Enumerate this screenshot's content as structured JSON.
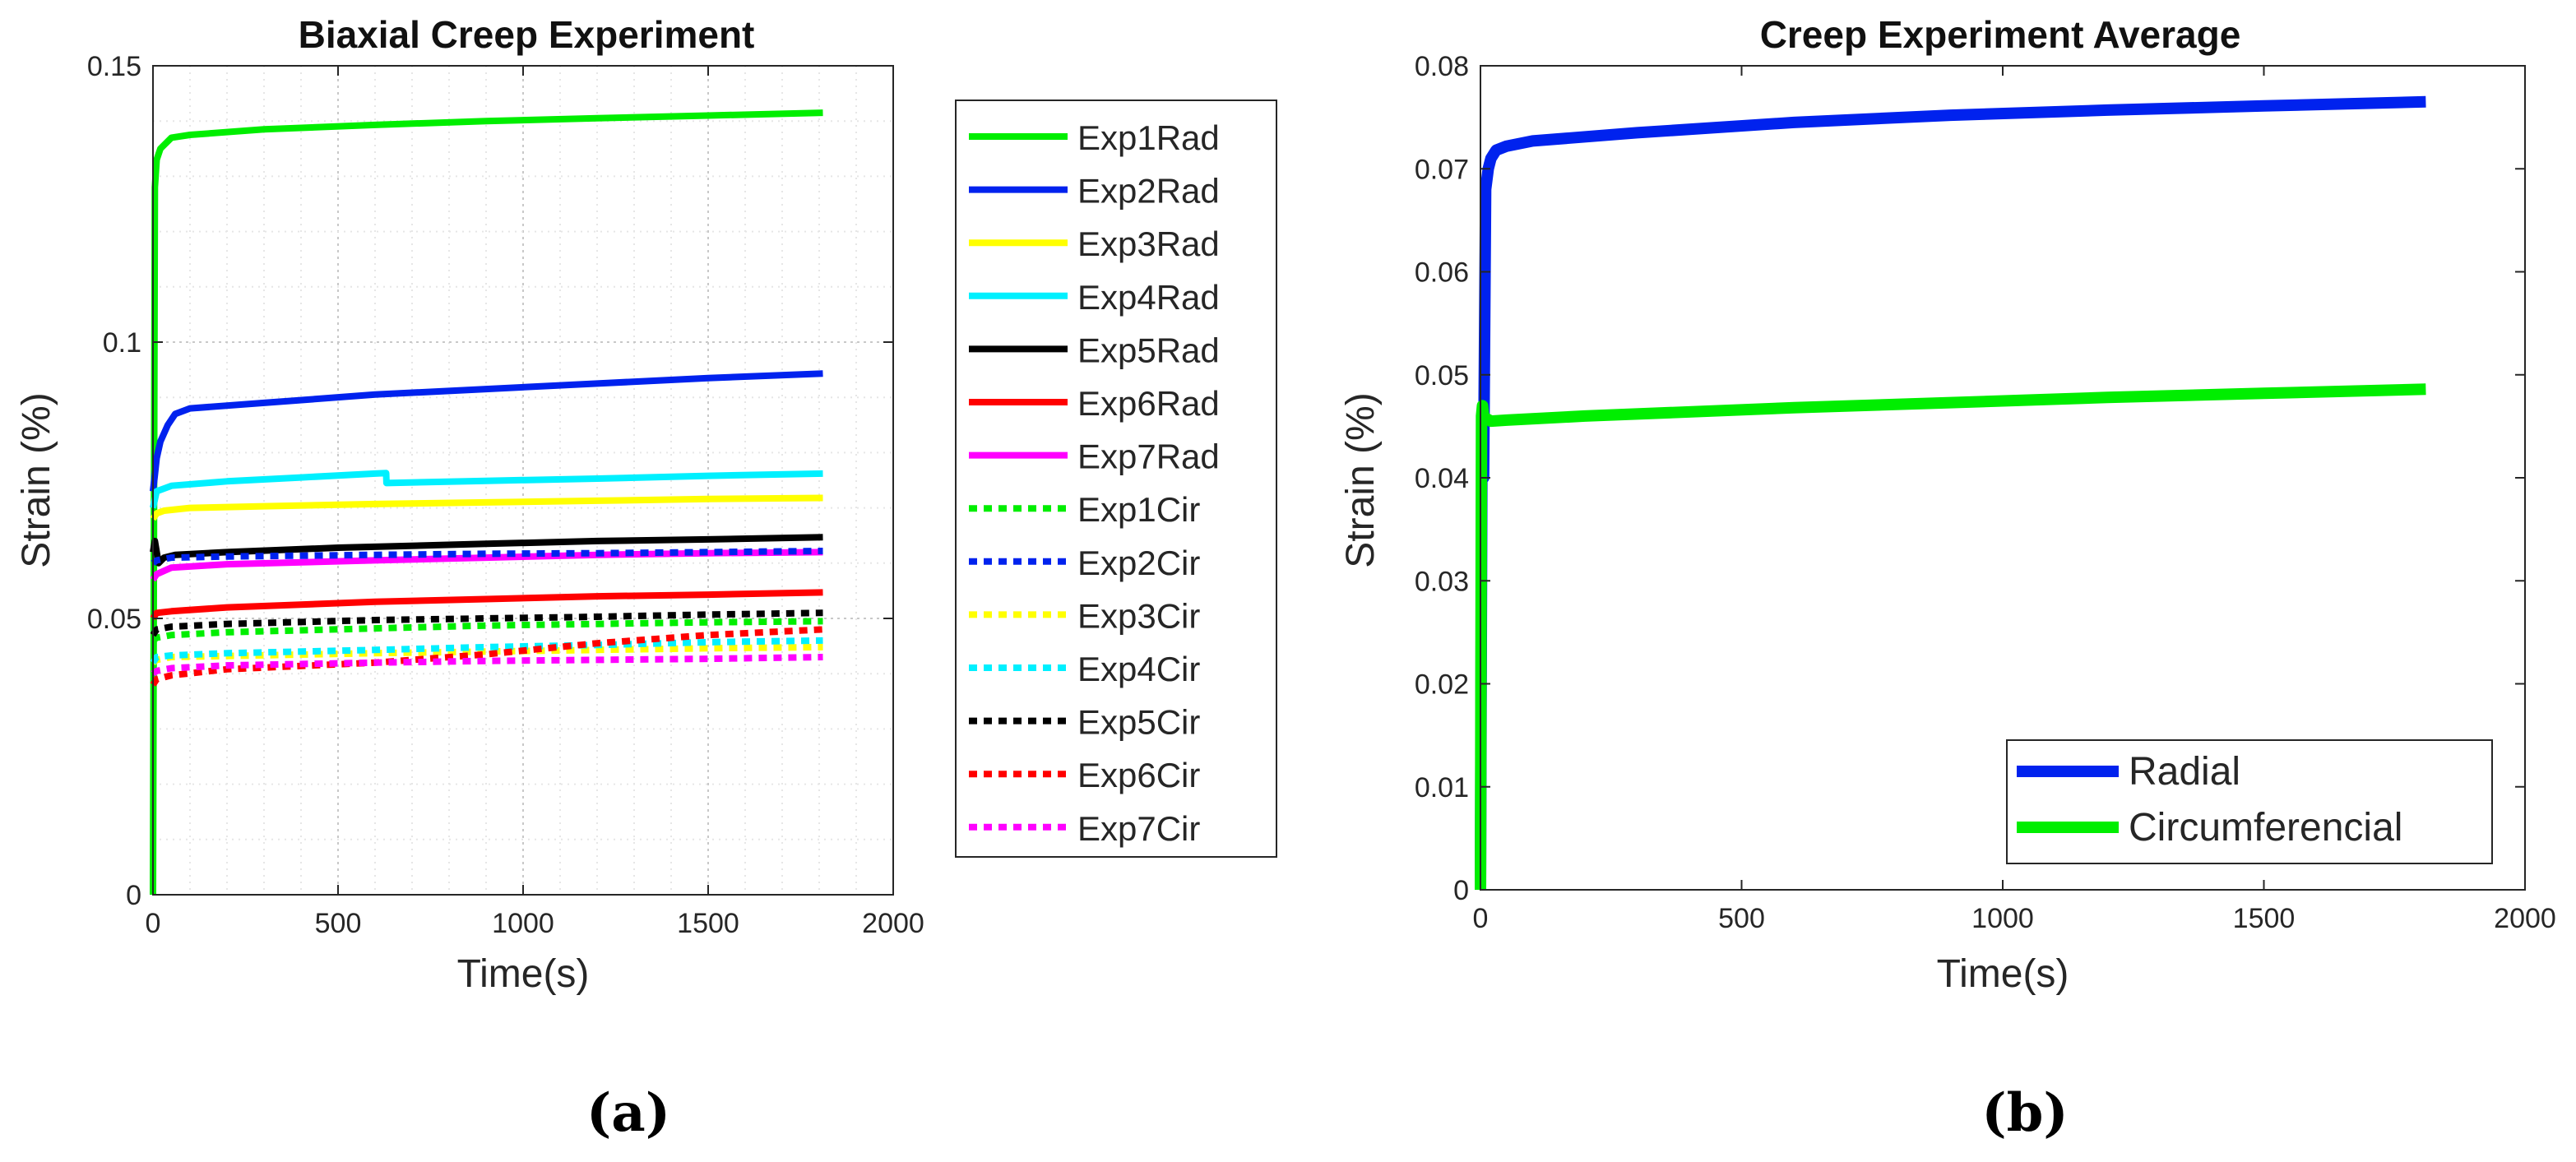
{
  "chart_data": [
    {
      "type": "line",
      "title": "Biaxial Creep Experiment",
      "xlabel": "Time(s)",
      "ylabel": "Strain (%)",
      "xlim": [
        0,
        2000
      ],
      "ylim": [
        0,
        0.15
      ],
      "xticks": [
        "0",
        "500",
        "1000",
        "1500",
        "2000"
      ],
      "xtick_values": [
        0,
        500,
        1000,
        1500,
        2000
      ],
      "yticks": [
        "0",
        "0.05",
        "0.1",
        "0.15"
      ],
      "ytick_values": [
        0,
        0.05,
        0.1,
        0.15
      ],
      "grid": "major and minor, dotted",
      "legend_position": "outside-right",
      "panel_label": "(a)",
      "series": [
        {
          "name": "Exp1Rad",
          "color": "#00ee00",
          "dash": "solid",
          "x": [
            0,
            5,
            10,
            20,
            50,
            100,
            300,
            600,
            900,
            1200,
            1500,
            1810
          ],
          "y": [
            0,
            0.128,
            0.133,
            0.135,
            0.137,
            0.1375,
            0.1385,
            0.1393,
            0.14,
            0.1405,
            0.141,
            0.1415
          ]
        },
        {
          "name": "Exp2Rad",
          "color": "#0022ee",
          "dash": "solid",
          "x": [
            0,
            5,
            10,
            20,
            40,
            60,
            100,
            300,
            600,
            900,
            1200,
            1500,
            1810
          ],
          "y": [
            0.073,
            0.076,
            0.079,
            0.082,
            0.085,
            0.087,
            0.088,
            0.089,
            0.0905,
            0.0915,
            0.0925,
            0.0935,
            0.0943
          ]
        },
        {
          "name": "Exp3Rad",
          "color": "#ffff00",
          "dash": "solid",
          "x": [
            0,
            10,
            30,
            100,
            300,
            600,
            900,
            1200,
            1500,
            1810
          ],
          "y": [
            0.068,
            0.069,
            0.0695,
            0.07,
            0.0703,
            0.0707,
            0.071,
            0.0713,
            0.0716,
            0.0718
          ]
        },
        {
          "name": "Exp4Rad",
          "color": "#00f0ff",
          "dash": "solid",
          "x": [
            0,
            10,
            50,
            200,
            400,
            600,
            630,
            631,
            900,
            1200,
            1500,
            1810
          ],
          "y": [
            0.07,
            0.073,
            0.074,
            0.0748,
            0.0755,
            0.0762,
            0.0763,
            0.0745,
            0.0749,
            0.0753,
            0.0758,
            0.0762
          ]
        },
        {
          "name": "Exp5Rad",
          "color": "#000000",
          "dash": "solid",
          "x": [
            0,
            5,
            15,
            30,
            60,
            200,
            500,
            900,
            1200,
            1500,
            1810
          ],
          "y": [
            0.062,
            0.064,
            0.06,
            0.061,
            0.0615,
            0.062,
            0.0628,
            0.0635,
            0.064,
            0.0643,
            0.0647
          ]
        },
        {
          "name": "Exp6Rad",
          "color": "#ff0000",
          "dash": "solid",
          "x": [
            0,
            10,
            50,
            200,
            600,
            900,
            1200,
            1500,
            1810
          ],
          "y": [
            0.05,
            0.051,
            0.0513,
            0.052,
            0.053,
            0.0535,
            0.054,
            0.0543,
            0.0547
          ]
        },
        {
          "name": "Exp7Rad",
          "color": "#ff00ff",
          "dash": "solid",
          "x": [
            0,
            10,
            50,
            200,
            600,
            900,
            1200,
            1500,
            1810
          ],
          "y": [
            0.057,
            0.058,
            0.0592,
            0.0598,
            0.0605,
            0.061,
            0.0615,
            0.0618,
            0.062
          ]
        },
        {
          "name": "Exp1Cir",
          "color": "#00ee00",
          "dash": "dotted",
          "x": [
            0,
            10,
            50,
            200,
            600,
            900,
            1200,
            1500,
            1810
          ],
          "y": [
            0.046,
            0.0465,
            0.047,
            0.0475,
            0.0482,
            0.0487,
            0.049,
            0.0493,
            0.0495
          ]
        },
        {
          "name": "Exp2Cir",
          "color": "#0022ee",
          "dash": "dotted",
          "x": [
            0,
            10,
            50,
            200,
            600,
            900,
            1200,
            1500,
            1810
          ],
          "y": [
            0.06,
            0.0605,
            0.061,
            0.0612,
            0.0615,
            0.0617,
            0.0618,
            0.062,
            0.0622
          ]
        },
        {
          "name": "Exp3Cir",
          "color": "#ffff00",
          "dash": "dotted",
          "x": [
            0,
            10,
            50,
            200,
            600,
            900,
            1200,
            1500,
            1810
          ],
          "y": [
            0.042,
            0.0425,
            0.043,
            0.0432,
            0.0437,
            0.044,
            0.0443,
            0.0446,
            0.0448
          ]
        },
        {
          "name": "Exp4Cir",
          "color": "#00f0ff",
          "dash": "dotted",
          "x": [
            0,
            10,
            50,
            200,
            600,
            900,
            1200,
            1500,
            1810
          ],
          "y": [
            0.042,
            0.043,
            0.0433,
            0.0437,
            0.0443,
            0.0448,
            0.0452,
            0.0457,
            0.046
          ]
        },
        {
          "name": "Exp5Cir",
          "color": "#000000",
          "dash": "dotted",
          "x": [
            0,
            10,
            50,
            200,
            600,
            900,
            1200,
            1500,
            1810
          ],
          "y": [
            0.047,
            0.048,
            0.0485,
            0.049,
            0.0497,
            0.05,
            0.0503,
            0.0507,
            0.051
          ]
        },
        {
          "name": "Exp6Cir",
          "color": "#ff0000",
          "dash": "dotted",
          "x": [
            0,
            10,
            50,
            200,
            600,
            900,
            1200,
            1500,
            1810
          ],
          "y": [
            0.038,
            0.039,
            0.0397,
            0.0408,
            0.042,
            0.0435,
            0.0455,
            0.047,
            0.048
          ]
        },
        {
          "name": "Exp7Cir",
          "color": "#ff00ff",
          "dash": "dotted",
          "x": [
            0,
            10,
            50,
            200,
            600,
            900,
            1200,
            1500,
            1810
          ],
          "y": [
            0.04,
            0.0405,
            0.041,
            0.0415,
            0.042,
            0.0423,
            0.0425,
            0.0427,
            0.043
          ]
        }
      ]
    },
    {
      "type": "line",
      "title": "Creep Experiment Average",
      "xlabel": "Time(s)",
      "ylabel": "Strain (%)",
      "xlim": [
        0,
        2000
      ],
      "ylim": [
        0,
        0.08
      ],
      "xticks": [
        "0",
        "500",
        "1000",
        "1500",
        "2000"
      ],
      "xtick_values": [
        0,
        500,
        1000,
        1500,
        2000
      ],
      "yticks": [
        "0",
        "0.01",
        "0.02",
        "0.03",
        "0.04",
        "0.05",
        "0.06",
        "0.07",
        "0.08"
      ],
      "ytick_values": [
        0,
        0.01,
        0.02,
        0.03,
        0.04,
        0.05,
        0.06,
        0.07,
        0.08
      ],
      "grid": "off",
      "legend_position": "bottom-right",
      "panel_label": "(b)",
      "series": [
        {
          "name": "Radial",
          "color": "#0022ee",
          "dash": "solid",
          "x": [
            0,
            3,
            6,
            10,
            15,
            20,
            30,
            50,
            100,
            300,
            600,
            900,
            1200,
            1500,
            1810
          ],
          "y": [
            0,
            0.046,
            0.04,
            0.068,
            0.07,
            0.071,
            0.0718,
            0.0722,
            0.0727,
            0.0735,
            0.0745,
            0.0752,
            0.0757,
            0.0761,
            0.0765
          ]
        },
        {
          "name": "Circumferencial",
          "color": "#00ee00",
          "dash": "solid",
          "x": [
            0,
            2,
            4,
            6,
            10,
            20,
            50,
            200,
            600,
            900,
            1200,
            1500,
            1810
          ],
          "y": [
            0,
            0.046,
            0.047,
            0.046,
            0.0458,
            0.0455,
            0.0456,
            0.046,
            0.0468,
            0.0473,
            0.0478,
            0.0482,
            0.0486
          ]
        }
      ]
    }
  ]
}
